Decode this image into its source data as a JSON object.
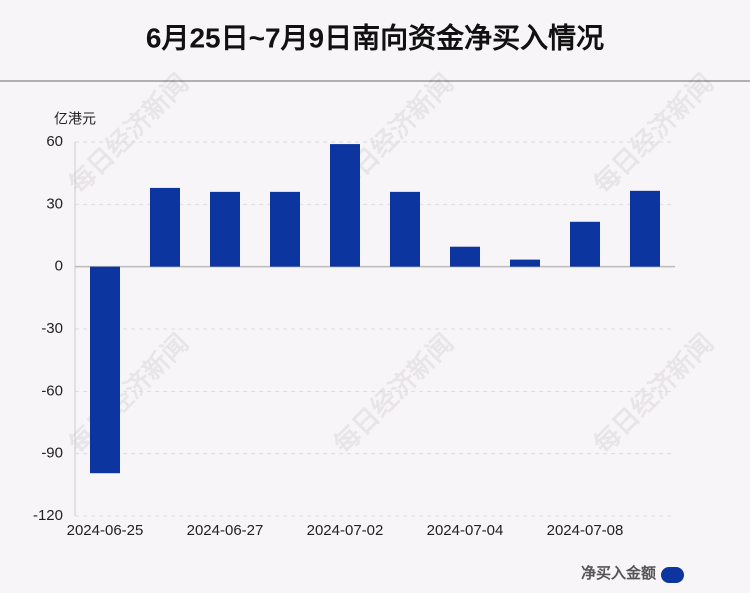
{
  "chart_data": {
    "type": "bar",
    "title": "6月25日~7月9日南向资金净买入情况",
    "y_unit": "亿港元",
    "watermark": "每日经济新闻",
    "categories": [
      "2024-06-25",
      null,
      "2024-06-27",
      null,
      "2024-07-02",
      null,
      "2024-07-04",
      null,
      "2024-07-08",
      null
    ],
    "series": [
      {
        "name": "净买入金额",
        "color": "#0d35a0",
        "values": [
          -99.4,
          37.9,
          36,
          36,
          59,
          36,
          9.6,
          3.4,
          21.6,
          36.5
        ]
      }
    ],
    "ylim": [
      -120,
      60
    ],
    "yticks": [
      60,
      30,
      0,
      -30,
      -60,
      -90,
      -120
    ],
    "grid": true,
    "legend": "bottom-right"
  }
}
